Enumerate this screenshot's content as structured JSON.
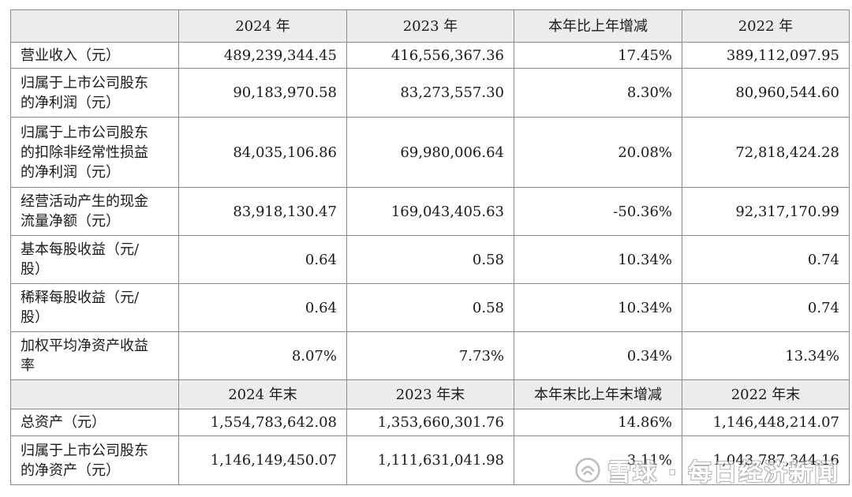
{
  "header1": [
    "",
    "2024 年",
    "2023 年",
    "本年比上年增减",
    "2022 年"
  ],
  "rows1": [
    {
      "label": [
        "营业收入（元）"
      ],
      "values": [
        "489,239,344.45",
        "416,556,367.36",
        "17.45%",
        "389,112,097.95"
      ]
    },
    {
      "label": [
        "归属于上市公司股东",
        "的净利润（元）"
      ],
      "values": [
        "90,183,970.58",
        "83,273,557.30",
        "8.30%",
        "80,960,544.60"
      ]
    },
    {
      "label": [
        "归属于上市公司股东",
        "的扣除非经常性损益",
        "的净利润（元）"
      ],
      "values": [
        "84,035,106.86",
        "69,980,006.64",
        "20.08%",
        "72,818,424.28"
      ]
    },
    {
      "label": [
        "经营活动产生的现金",
        "流量净额（元）"
      ],
      "values": [
        "83,918,130.47",
        "169,043,405.63",
        "-50.36%",
        "92,317,170.99"
      ]
    },
    {
      "label": [
        "基本每股收益（元/",
        "股）"
      ],
      "values": [
        "0.64",
        "0.58",
        "10.34%",
        "0.74"
      ]
    },
    {
      "label": [
        "稀释每股收益（元/",
        "股）"
      ],
      "values": [
        "0.64",
        "0.58",
        "10.34%",
        "0.74"
      ]
    },
    {
      "label": [
        "加权平均净资产收益",
        "率"
      ],
      "values": [
        "8.07%",
        "7.73%",
        "0.34%",
        "13.34%"
      ]
    }
  ],
  "header2": [
    "",
    "2024 年末",
    "2023 年末",
    "本年末比上年末增减",
    "2022 年末"
  ],
  "rows2": [
    {
      "label": [
        "总资产（元）"
      ],
      "values": [
        "1,554,783,642.08",
        "1,353,660,301.76",
        "14.86%",
        "1,146,448,214.07"
      ]
    },
    {
      "label": [
        "归属于上市公司股东",
        "的净资产（元）"
      ],
      "values": [
        "1,146,149,450.07",
        "1,111,631,041.98",
        "3.11%",
        "1,043,787,344.16"
      ]
    }
  ],
  "watermark": {
    "text": "雪球 · 每日经济新闻",
    "icon": "snowball-logo-icon"
  }
}
